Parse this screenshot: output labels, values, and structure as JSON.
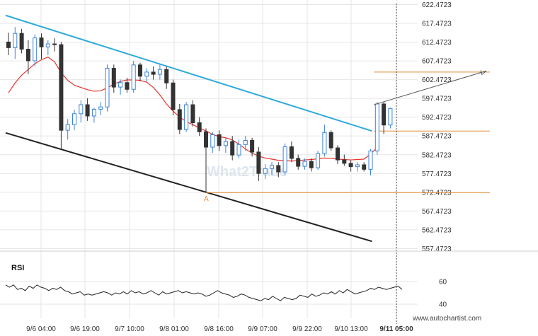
{
  "chart_data": {
    "type": "candlestick",
    "y_ticks": [
      "622.4723",
      "617.4723",
      "612.4723",
      "607.4723",
      "602.4723",
      "597.4723",
      "592.4723",
      "587.4723",
      "582.4723",
      "577.4723",
      "572.4723",
      "567.4723",
      "562.4723",
      "557.4723"
    ],
    "ylim": [
      555.2,
      624.5
    ],
    "x_ticks": [
      "9/6 04:00",
      "9/6 19:00",
      "9/7 10:00",
      "9/8 01:00",
      "9/8 16:00",
      "9/9 07:00",
      "9/9 22:00",
      "9/10 13:00",
      "9/11 05:00"
    ],
    "x_tick_bold_index": 8,
    "colors": {
      "up": "#3b82d6",
      "down": "#333333",
      "ma": "#e8342c",
      "resistance": "#2eaadc",
      "support": "#222222",
      "levels": "#e08a2e",
      "projection": "#555555",
      "rsi": "#222222"
    },
    "candles": [
      [
        612.5,
        615.0,
        609.0,
        611.0
      ],
      [
        611.0,
        616.5,
        608.0,
        614.8
      ],
      [
        614.8,
        616.0,
        609.5,
        610.6
      ],
      [
        610.6,
        613.0,
        604.0,
        607.5
      ],
      [
        607.5,
        614.5,
        606.0,
        613.6
      ],
      [
        613.6,
        614.8,
        608.0,
        611.2
      ],
      [
        611.2,
        613.0,
        609.0,
        612.0
      ],
      [
        612.0,
        613.5,
        610.0,
        611.8
      ],
      [
        611.8,
        612.5,
        584.0,
        589.0
      ],
      [
        589.0,
        592.0,
        586.5,
        590.5
      ],
      [
        590.5,
        594.5,
        589.0,
        593.4
      ],
      [
        593.4,
        597.0,
        591.0,
        595.8
      ],
      [
        595.8,
        597.5,
        591.5,
        592.8
      ],
      [
        592.8,
        595.0,
        591.0,
        594.6
      ],
      [
        594.6,
        596.5,
        593.0,
        595.2
      ],
      [
        595.2,
        606.5,
        594.0,
        605.5
      ],
      [
        605.5,
        606.5,
        599.0,
        600.5
      ],
      [
        600.5,
        602.5,
        598.5,
        601.7
      ],
      [
        601.7,
        603.0,
        599.0,
        599.9
      ],
      [
        599.9,
        607.5,
        599.0,
        606.4
      ],
      [
        606.4,
        607.0,
        602.0,
        603.4
      ],
      [
        603.4,
        605.5,
        602.0,
        604.5
      ],
      [
        604.5,
        606.0,
        602.5,
        603.9
      ],
      [
        603.9,
        606.5,
        602.5,
        605.2
      ],
      [
        605.2,
        606.0,
        600.0,
        601.6
      ],
      [
        601.6,
        602.5,
        593.0,
        594.5
      ],
      [
        594.5,
        596.0,
        588.0,
        589.2
      ],
      [
        589.2,
        596.5,
        588.5,
        595.8
      ],
      [
        595.8,
        597.0,
        590.0,
        591.0
      ],
      [
        591.0,
        592.5,
        587.5,
        588.6
      ],
      [
        588.6,
        589.5,
        572.5,
        584.5
      ],
      [
        584.5,
        588.5,
        583.0,
        587.8
      ],
      [
        587.8,
        589.0,
        583.5,
        584.9
      ],
      [
        584.9,
        587.0,
        583.0,
        586.0
      ],
      [
        586.0,
        587.5,
        581.0,
        582.4
      ],
      [
        582.4,
        586.5,
        581.5,
        585.2
      ],
      [
        585.2,
        587.5,
        583.5,
        586.3
      ],
      [
        586.3,
        587.0,
        582.0,
        583.2
      ],
      [
        583.2,
        584.5,
        575.5,
        577.5
      ],
      [
        577.5,
        580.0,
        576.0,
        578.8
      ],
      [
        578.8,
        580.5,
        577.0,
        579.6
      ],
      [
        579.6,
        580.5,
        576.5,
        577.9
      ],
      [
        577.9,
        585.5,
        577.0,
        584.6
      ],
      [
        584.6,
        586.0,
        580.5,
        581.5
      ],
      [
        581.5,
        582.5,
        578.5,
        579.4
      ],
      [
        579.4,
        581.5,
        578.5,
        580.7
      ],
      [
        580.7,
        581.5,
        578.0,
        579.0
      ],
      [
        579.0,
        583.5,
        578.5,
        582.8
      ],
      [
        582.8,
        590.5,
        582.0,
        588.4
      ],
      [
        588.4,
        589.0,
        583.5,
        584.3
      ],
      [
        584.3,
        585.0,
        580.0,
        581.1
      ],
      [
        581.1,
        582.5,
        579.5,
        580.2
      ],
      [
        580.2,
        581.0,
        578.0,
        579.3
      ],
      [
        579.3,
        580.5,
        578.0,
        579.8
      ],
      [
        579.8,
        580.5,
        578.0,
        578.6
      ],
      [
        578.6,
        584.0,
        577.0,
        583.5
      ],
      [
        583.5,
        596.5,
        582.5,
        596.0
      ],
      [
        596.0,
        596.5,
        588.0,
        590.4
      ],
      [
        590.4,
        595.0,
        589.5,
        594.8
      ]
    ],
    "moving_average": [
      599.0,
      601.6,
      603.7,
      605.2,
      606.7,
      607.8,
      608.5,
      607.2,
      604.3,
      602.3,
      601.0,
      600.4,
      599.8,
      599.4,
      599.5,
      600.3,
      601.3,
      602.0,
      602.4,
      602.4,
      602.3,
      601.8,
      600.4,
      598.4,
      596.0,
      594.1,
      592.5,
      591.3,
      590.5,
      589.6,
      588.8,
      587.9,
      587.3,
      587.0,
      586.4,
      585.3,
      584.0,
      582.9,
      582.1,
      581.6,
      581.3,
      581.0,
      580.9,
      580.8,
      580.9,
      581.1,
      581.2,
      581.4,
      581.6,
      581.5,
      581.3,
      581.2,
      581.1,
      581.2,
      581.3,
      582.7,
      584.4
    ],
    "resistance_line": {
      "start": [
        0,
        619.6
      ],
      "end": [
        55,
        588.8
      ]
    },
    "support_line": {
      "start": [
        0,
        588.3
      ],
      "end": [
        55,
        559.4
      ]
    },
    "level_lines": [
      604.5,
      588.8,
      572.4
    ],
    "level_line_starts": [
      55.5,
      55.5,
      30
    ],
    "projection_arrow": {
      "start": [
        55.5,
        595.8
      ],
      "end": [
        68,
        604.8
      ]
    },
    "point_label": {
      "text": "A",
      "index": 30,
      "value": 572.4
    },
    "rsi": {
      "label": "RSI",
      "ticks": [
        "60",
        "40"
      ],
      "ylim": [
        33,
        72
      ],
      "values": [
        57,
        55,
        57,
        53,
        54,
        52,
        56,
        54,
        57,
        55,
        54,
        52,
        54,
        53,
        55,
        52,
        51,
        49,
        50,
        51,
        48,
        49,
        48,
        49,
        50,
        51,
        50,
        48,
        50,
        49,
        51,
        49,
        52,
        50,
        51,
        49,
        50,
        52,
        50,
        48,
        51,
        49,
        50,
        51,
        52,
        50,
        51,
        50,
        49,
        50,
        49,
        47,
        48,
        50,
        52,
        50,
        49,
        48,
        46,
        47,
        49,
        48,
        46,
        45,
        44,
        43,
        45,
        44,
        47,
        45,
        43,
        46,
        45,
        44,
        45,
        48,
        47,
        46,
        49,
        47,
        48,
        50,
        49,
        51,
        49,
        52,
        50,
        53,
        51,
        49,
        50,
        51,
        52,
        54,
        53,
        55,
        54,
        53,
        54,
        55,
        56,
        53
      ]
    }
  },
  "watermark": "What2Trade",
  "footer": "www.autochartist.com"
}
